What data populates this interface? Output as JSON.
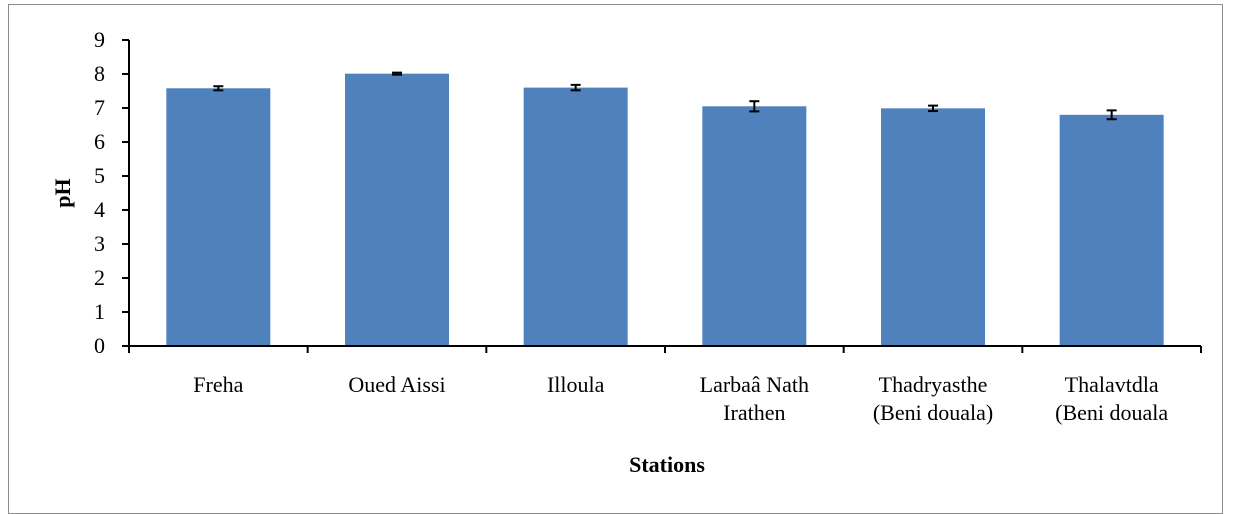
{
  "chart_data": {
    "type": "bar",
    "xlabel": "Stations",
    "ylabel": "pH",
    "ylim": [
      0,
      9
    ],
    "yticks": [
      "0",
      "1",
      "2",
      "3",
      "4",
      "5",
      "6",
      "7",
      "8",
      "9"
    ],
    "categories": [
      [
        "Freha"
      ],
      [
        "Oued Aissi"
      ],
      [
        "Illoula"
      ],
      [
        "Larbaâ Nath",
        "Irathen"
      ],
      [
        "Thadryasthe",
        "(Beni douala)"
      ],
      [
        "Thalavtdla",
        "(Beni douala"
      ]
    ],
    "values": [
      7.58,
      8.01,
      7.6,
      7.05,
      6.99,
      6.8
    ],
    "errors": [
      0.06,
      0.03,
      0.08,
      0.15,
      0.08,
      0.13
    ],
    "bar_color": "#4f81bd",
    "grid": false,
    "legend": "none"
  }
}
